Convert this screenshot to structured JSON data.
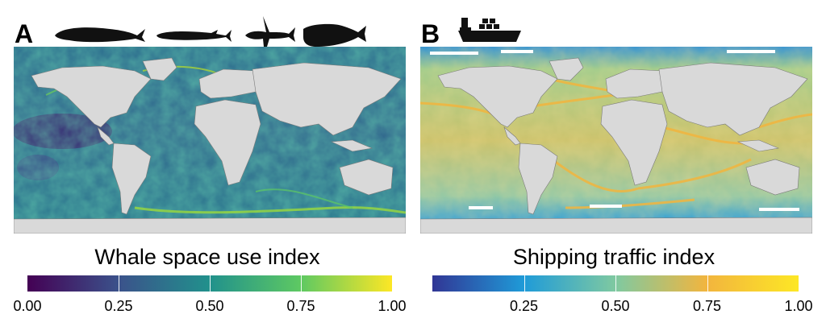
{
  "panels": [
    {
      "letter": "A",
      "colorbar_title": "Whale space use index",
      "ticks": [
        "0.00",
        "0.25",
        "0.50",
        "0.75",
        "1.00"
      ],
      "tick_values": [
        0.0,
        0.25,
        0.5,
        0.75,
        1.0
      ],
      "colormap": [
        "#440154",
        "#3b528b",
        "#21918c",
        "#5ec962",
        "#fde725"
      ],
      "icons": [
        "blue-whale-icon",
        "fin-whale-icon",
        "humpback-whale-icon",
        "sperm-whale-icon"
      ]
    },
    {
      "letter": "B",
      "colorbar_title": "Shipping traffic index",
      "ticks": [
        "0.25",
        "0.50",
        "0.75",
        "1.00"
      ],
      "tick_values": [
        0.25,
        0.5,
        0.75,
        1.0
      ],
      "colormap": [
        "#313695",
        "#1f9bd8",
        "#7fc9a1",
        "#f2b53e",
        "#fde725"
      ],
      "icons": [
        "container-ship-icon"
      ]
    }
  ],
  "land_color": "#d9d9d9",
  "border_color": "#7a7a7a"
}
